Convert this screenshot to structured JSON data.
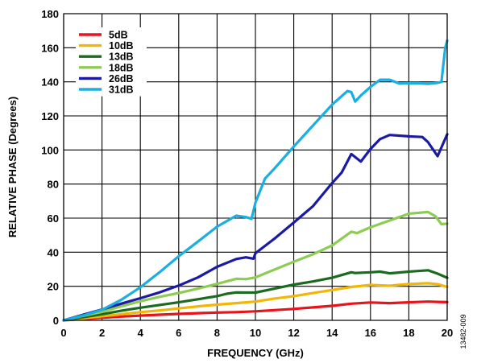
{
  "chart_data": {
    "type": "line",
    "xlabel": "FREQUENCY (GHz)",
    "ylabel": "RELATIVE PHASE (Degrees)",
    "xlim": [
      0,
      20
    ],
    "ylim": [
      0,
      180
    ],
    "x_ticks": [
      0,
      2,
      4,
      6,
      8,
      10,
      12,
      14,
      16,
      18,
      20
    ],
    "y_ticks": [
      0,
      20,
      40,
      60,
      80,
      100,
      120,
      140,
      160,
      180
    ],
    "x_tick_labels": [
      "0",
      "2",
      "4",
      "6",
      "8",
      "10",
      "12",
      "14",
      "16",
      "18",
      "20"
    ],
    "y_tick_labels": [
      "0",
      "20",
      "40",
      "60",
      "80",
      "100",
      "120",
      "140",
      "160",
      "180"
    ],
    "grid": true,
    "legend_position": "top-left",
    "figure_id": "13482-009",
    "series": [
      {
        "name": "5dB",
        "color": "#e8141c",
        "points": [
          [
            0,
            0
          ],
          [
            1,
            0.8
          ],
          [
            2,
            1.5
          ],
          [
            3,
            2.2
          ],
          [
            4,
            2.8
          ],
          [
            5,
            3.3
          ],
          [
            6,
            3.8
          ],
          [
            7,
            4.2
          ],
          [
            8,
            4.6
          ],
          [
            9,
            4.8
          ],
          [
            10,
            5.3
          ],
          [
            11,
            6
          ],
          [
            12,
            6.7
          ],
          [
            13,
            7.6
          ],
          [
            14,
            8.5
          ],
          [
            15,
            9.8
          ],
          [
            16,
            10.5
          ],
          [
            17,
            10.1
          ],
          [
            18,
            10.6
          ],
          [
            19,
            11
          ],
          [
            19.5,
            10.8
          ],
          [
            20,
            10.7
          ]
        ]
      },
      {
        "name": "10dB",
        "color": "#f2b705",
        "points": [
          [
            0,
            0
          ],
          [
            1,
            1.2
          ],
          [
            2,
            2.4
          ],
          [
            3,
            3.6
          ],
          [
            4,
            4.8
          ],
          [
            5,
            5.8
          ],
          [
            6,
            7
          ],
          [
            7,
            8.2
          ],
          [
            8,
            9.2
          ],
          [
            9,
            10.1
          ],
          [
            10,
            11
          ],
          [
            11,
            12.8
          ],
          [
            12,
            14.2
          ],
          [
            13,
            16
          ],
          [
            14,
            17.8
          ],
          [
            15,
            19.6
          ],
          [
            16,
            20.8
          ],
          [
            17,
            20.3
          ],
          [
            18,
            21.3
          ],
          [
            19,
            21.8
          ],
          [
            19.5,
            21.2
          ],
          [
            20,
            19.6
          ]
        ]
      },
      {
        "name": "13dB",
        "color": "#1a6b1f",
        "points": [
          [
            0,
            0
          ],
          [
            1,
            1.8
          ],
          [
            2,
            3.6
          ],
          [
            3,
            5.6
          ],
          [
            4,
            7.4
          ],
          [
            5,
            9
          ],
          [
            6,
            10.6
          ],
          [
            7,
            12.4
          ],
          [
            8,
            14.2
          ],
          [
            8.5,
            15.6
          ],
          [
            9,
            16.4
          ],
          [
            9.5,
            16.3
          ],
          [
            10,
            16.3
          ],
          [
            11,
            18.6
          ],
          [
            12,
            21
          ],
          [
            13,
            22.8
          ],
          [
            14,
            25
          ],
          [
            15,
            28.2
          ],
          [
            15.2,
            27.8
          ],
          [
            16,
            28.2
          ],
          [
            16.5,
            28.6
          ],
          [
            17,
            27.6
          ],
          [
            18,
            28.6
          ],
          [
            19,
            29.4
          ],
          [
            19.5,
            27.4
          ],
          [
            20,
            25
          ]
        ]
      },
      {
        "name": "18dB",
        "color": "#8ccc50",
        "points": [
          [
            0,
            0
          ],
          [
            1,
            2.6
          ],
          [
            2,
            5
          ],
          [
            3,
            8.2
          ],
          [
            4,
            11.2
          ],
          [
            5,
            13.8
          ],
          [
            6,
            16
          ],
          [
            7,
            18.6
          ],
          [
            8,
            21.4
          ],
          [
            9,
            24.4
          ],
          [
            9.5,
            24.2
          ],
          [
            10,
            25.2
          ],
          [
            11,
            29.8
          ],
          [
            12,
            34.4
          ],
          [
            13,
            38.8
          ],
          [
            14,
            44
          ],
          [
            15,
            52
          ],
          [
            15.3,
            51.2
          ],
          [
            16,
            54.6
          ],
          [
            17,
            58.6
          ],
          [
            18,
            62.6
          ],
          [
            19,
            63.6
          ],
          [
            19.4,
            61
          ],
          [
            19.7,
            56.4
          ],
          [
            20,
            56.8
          ]
        ]
      },
      {
        "name": "26dB",
        "color": "#1a1aa6",
        "points": [
          [
            0,
            0
          ],
          [
            1,
            3.2
          ],
          [
            2,
            6.4
          ],
          [
            3,
            9.8
          ],
          [
            4,
            13
          ],
          [
            5,
            16.4
          ],
          [
            6,
            20.4
          ],
          [
            7,
            25.2
          ],
          [
            8,
            31.4
          ],
          [
            9,
            36
          ],
          [
            9.5,
            37
          ],
          [
            9.9,
            36.2
          ],
          [
            10,
            39.4
          ],
          [
            11,
            48
          ],
          [
            12,
            57.4
          ],
          [
            13,
            67
          ],
          [
            14,
            80.6
          ],
          [
            14.5,
            86.8
          ],
          [
            15,
            97.6
          ],
          [
            15.5,
            93.2
          ],
          [
            16,
            100.6
          ],
          [
            16.5,
            106.4
          ],
          [
            17,
            108.8
          ],
          [
            18,
            108
          ],
          [
            18.7,
            107.6
          ],
          [
            19,
            104.6
          ],
          [
            19.5,
            96.4
          ],
          [
            20,
            109.2
          ]
        ]
      },
      {
        "name": "31dB",
        "color": "#1aafe0",
        "points": [
          [
            0,
            0
          ],
          [
            1,
            2.8
          ],
          [
            2,
            6.2
          ],
          [
            3,
            12
          ],
          [
            4,
            19.4
          ],
          [
            5,
            28.2
          ],
          [
            6,
            37.6
          ],
          [
            7,
            46.2
          ],
          [
            8,
            55
          ],
          [
            9,
            61.4
          ],
          [
            9.5,
            60.6
          ],
          [
            9.8,
            59.6
          ],
          [
            10,
            69
          ],
          [
            10.5,
            83.2
          ],
          [
            11,
            89.2
          ],
          [
            12,
            102
          ],
          [
            13,
            114.4
          ],
          [
            14,
            126.6
          ],
          [
            14.8,
            134.6
          ],
          [
            15,
            134
          ],
          [
            15.2,
            128.4
          ],
          [
            15.5,
            132
          ],
          [
            16,
            137
          ],
          [
            16.5,
            141.2
          ],
          [
            17,
            141.2
          ],
          [
            17.5,
            139
          ],
          [
            18,
            139.2
          ],
          [
            18.5,
            139.2
          ],
          [
            19,
            138.8
          ],
          [
            19.5,
            139.4
          ],
          [
            19.7,
            140
          ],
          [
            19.8,
            150
          ],
          [
            19.9,
            160
          ],
          [
            20,
            164.2
          ]
        ]
      }
    ]
  }
}
